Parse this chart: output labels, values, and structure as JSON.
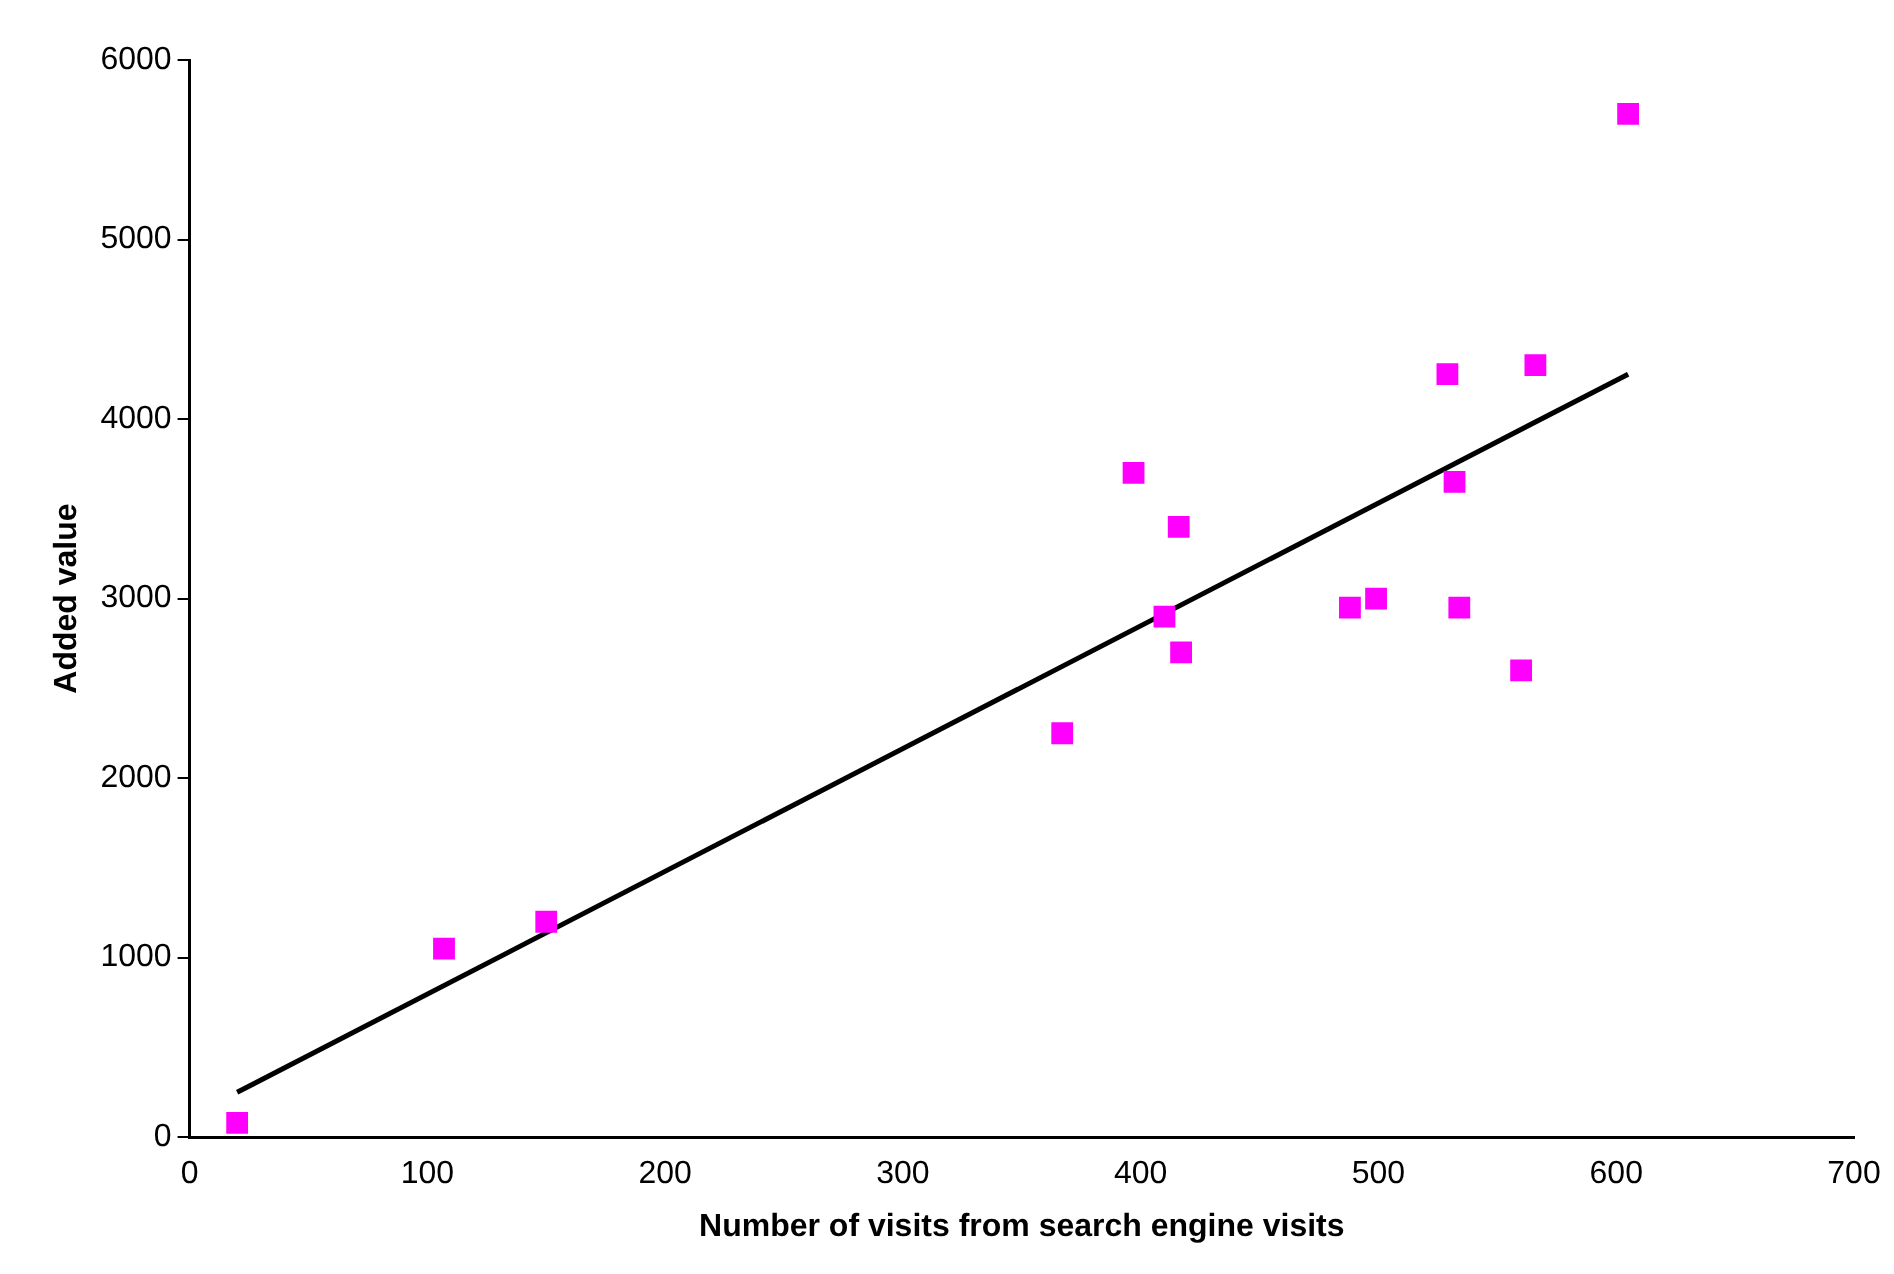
{
  "chart_data": {
    "type": "scatter",
    "xlabel": "Number of visits from search engine visits",
    "ylabel": "Added value",
    "x": [
      20,
      107,
      150,
      367,
      397,
      410,
      416,
      417,
      488,
      499,
      529,
      532,
      534,
      560,
      566,
      605
    ],
    "series": [
      {
        "color": "#ff00ff",
        "marker": "square",
        "values": [
          80,
          1050,
          1200,
          2250,
          3700,
          2900,
          3400,
          2700,
          2950,
          3000,
          4250,
          3650,
          2950,
          2600,
          4300,
          5700
        ]
      },
      {
        "type": "line",
        "color": "#000000",
        "marker": "none",
        "x": [
          20,
          605
        ],
        "values": [
          250,
          4250
        ]
      }
    ],
    "xlim": [
      0,
      700
    ],
    "xticks": [
      0,
      100,
      200,
      300,
      400,
      500,
      600,
      700
    ],
    "ylim": [
      0,
      6000
    ],
    "yticks": [
      0,
      1000,
      2000,
      3000,
      4000,
      5000,
      6000
    ],
    "grid": false,
    "legend": false
  }
}
